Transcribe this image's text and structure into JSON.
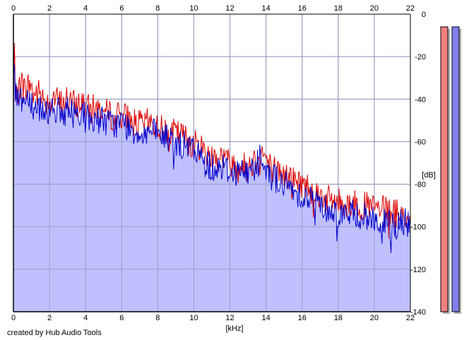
{
  "chart_data": {
    "type": "line",
    "title": "",
    "xlabel": "[kHz]",
    "ylabel": "[dB]",
    "xlim": [
      0,
      22
    ],
    "ylim": [
      -140,
      0
    ],
    "x_ticks": [
      0,
      2,
      4,
      6,
      8,
      10,
      12,
      14,
      16,
      18,
      20,
      22
    ],
    "x_tick_labels": [
      "0",
      "2",
      "4",
      "6",
      "8",
      "10",
      "12",
      "14",
      "16",
      "18",
      "20",
      "22"
    ],
    "y_ticks": [
      0,
      -20,
      -40,
      -60,
      -80,
      -100,
      -120,
      -140
    ],
    "y_tick_labels": [
      "0",
      "-20",
      "-40",
      "-60",
      "-80",
      "-100",
      "-120",
      "-140"
    ],
    "grid": true,
    "fill_color": "#c0c0ff",
    "series": [
      {
        "color": "#dd0000",
        "x": [
          0,
          0.05,
          0.1,
          0.2,
          0.3,
          0.5,
          0.7,
          0.9,
          1.1,
          1.4,
          1.8,
          2.2,
          2.6,
          3.0,
          3.4,
          3.8,
          4.2,
          4.6,
          5.0,
          5.5,
          6.0,
          6.5,
          7.0,
          7.5,
          8.0,
          8.5,
          9.0,
          9.5,
          10.0,
          10.5,
          11.0,
          11.5,
          12.0,
          12.5,
          13.0,
          13.4,
          13.7,
          14.0,
          14.3,
          14.8,
          15.3,
          15.8,
          16.3,
          16.8,
          17.3,
          17.8,
          18.3,
          18.8,
          19.3,
          19.8,
          20.3,
          20.8,
          21.3,
          21.8,
          22.0
        ],
        "y": [
          -40,
          -16,
          -34,
          -37,
          -34,
          -33,
          -36,
          -32,
          -38,
          -37,
          -41,
          -39,
          -42,
          -40,
          -43,
          -41,
          -45,
          -44,
          -46,
          -48,
          -47,
          -50,
          -52,
          -51,
          -53,
          -55,
          -56,
          -58,
          -61,
          -63,
          -67,
          -66,
          -70,
          -71,
          -72,
          -68,
          -64,
          -68,
          -72,
          -75,
          -77,
          -79,
          -81,
          -84,
          -87,
          -88,
          -89,
          -89,
          -90,
          -91,
          -92,
          -93,
          -94,
          -95,
          -97
        ]
      },
      {
        "color": "#0000cc",
        "x": [
          0,
          0.05,
          0.1,
          0.2,
          0.3,
          0.5,
          0.7,
          0.9,
          1.1,
          1.4,
          1.8,
          2.2,
          2.6,
          3.0,
          3.4,
          3.8,
          4.2,
          4.6,
          5.0,
          5.5,
          6.0,
          6.5,
          7.0,
          7.5,
          8.0,
          8.5,
          9.0,
          9.5,
          10.0,
          10.5,
          11.0,
          11.5,
          12.0,
          12.5,
          13.0,
          13.4,
          13.7,
          14.0,
          14.3,
          14.8,
          15.3,
          15.8,
          16.3,
          16.8,
          17.3,
          17.8,
          18.3,
          18.8,
          19.3,
          19.8,
          20.3,
          20.8,
          21.3,
          21.8,
          22.0
        ],
        "y": [
          -44,
          -13,
          -38,
          -41,
          -38,
          -40,
          -40,
          -37,
          -44,
          -43,
          -46,
          -43,
          -47,
          -45,
          -47,
          -45,
          -50,
          -49,
          -50,
          -52,
          -51,
          -54,
          -56,
          -55,
          -57,
          -58,
          -61,
          -62,
          -64,
          -68,
          -72,
          -71,
          -74,
          -74,
          -75,
          -71,
          -66,
          -71,
          -76,
          -79,
          -82,
          -84,
          -86,
          -88,
          -91,
          -93,
          -94,
          -94,
          -95,
          -96,
          -98,
          -99,
          -99,
          -98,
          -99
        ]
      }
    ],
    "level_meters": {
      "left_color": "#f08080",
      "right_color": "#8080ee",
      "left_level_db": -6,
      "right_level_db": -6
    }
  },
  "footer": {
    "credit": "created by Hub Audio Tools"
  }
}
